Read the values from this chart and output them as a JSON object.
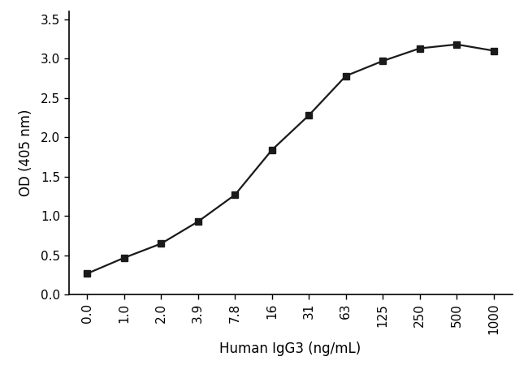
{
  "x_labels": [
    "0.0",
    "1.0",
    "2.0",
    "3.9",
    "7.8",
    "16",
    "31",
    "63",
    "125",
    "250",
    "500",
    "1000"
  ],
  "x_positions": [
    0,
    1,
    2,
    3,
    4,
    5,
    6,
    7,
    8,
    9,
    10,
    11
  ],
  "y_values": [
    0.27,
    0.47,
    0.65,
    0.93,
    1.27,
    1.84,
    2.28,
    2.78,
    2.97,
    3.13,
    3.18,
    3.1
  ],
  "xlabel": "Human IgG3 (ng/mL)",
  "ylabel": "OD (405 nm)",
  "ylim": [
    0,
    3.6
  ],
  "yticks": [
    0.0,
    0.5,
    1.0,
    1.5,
    2.0,
    2.5,
    3.0,
    3.5
  ],
  "line_color": "#1a1a1a",
  "marker": "s",
  "marker_size": 6,
  "line_width": 1.6,
  "background_color": "#ffffff",
  "fig_width": 6.5,
  "fig_height": 4.66,
  "dpi": 100
}
